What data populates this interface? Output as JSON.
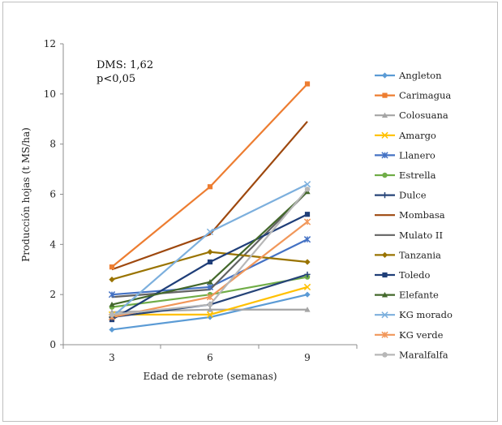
{
  "chart_data": {
    "type": "line",
    "title": "",
    "xlabel": "Edad de rebrote (semanas)",
    "ylabel": "Producción hojas (t MS/ha)",
    "x": [
      3,
      6,
      9
    ],
    "x_tick_labels": [
      "3",
      "6",
      "9"
    ],
    "ylim": [
      0,
      12
    ],
    "y_ticks": [
      0,
      2,
      4,
      6,
      8,
      10,
      12
    ],
    "y_tick_labels": [
      "0",
      "2",
      "4",
      "6",
      "8",
      "10",
      "12"
    ],
    "grid": false,
    "legend_position": "right",
    "annotations": [
      "DMS: 1,62",
      "p<0,05"
    ],
    "series": [
      {
        "name": "Angleton",
        "color": "#5b9bd5",
        "marker": "diamond",
        "values": [
          0.6,
          1.1,
          2.0
        ]
      },
      {
        "name": "Carimagua",
        "color": "#ed7d31",
        "marker": "square",
        "values": [
          3.1,
          6.3,
          10.4
        ]
      },
      {
        "name": "Colosuana",
        "color": "#a5a5a5",
        "marker": "triangle",
        "values": [
          1.3,
          1.4,
          1.4
        ]
      },
      {
        "name": "Amargo",
        "color": "#ffc000",
        "marker": "x",
        "values": [
          1.2,
          1.2,
          2.3
        ]
      },
      {
        "name": "Llanero",
        "color": "#4472c4",
        "marker": "star",
        "values": [
          2.0,
          2.3,
          4.2
        ]
      },
      {
        "name": "Estrella",
        "color": "#70ad47",
        "marker": "circle",
        "values": [
          1.5,
          2.0,
          2.7
        ]
      },
      {
        "name": "Dulce",
        "color": "#264478",
        "marker": "plus",
        "values": [
          1.1,
          1.6,
          2.8
        ]
      },
      {
        "name": "Mombasa",
        "color": "#9e480e",
        "marker": "none",
        "values": [
          3.0,
          4.4,
          8.9
        ]
      },
      {
        "name": "Mulato II",
        "color": "#636363",
        "marker": "none",
        "values": [
          1.9,
          2.2,
          6.1
        ]
      },
      {
        "name": "Tanzania",
        "color": "#997300",
        "marker": "diamond",
        "values": [
          2.6,
          3.7,
          3.3
        ]
      },
      {
        "name": "Toledo",
        "color": "#1f3e78",
        "marker": "square",
        "values": [
          1.0,
          3.3,
          5.2
        ]
      },
      {
        "name": "Elefante",
        "color": "#43682b",
        "marker": "triangle",
        "values": [
          1.6,
          2.5,
          6.1
        ]
      },
      {
        "name": "KG morado",
        "color": "#7cafdd",
        "marker": "x",
        "values": [
          1.1,
          4.5,
          6.4
        ]
      },
      {
        "name": "KG verde",
        "color": "#f1975a",
        "marker": "star",
        "values": [
          1.1,
          1.9,
          4.9
        ]
      },
      {
        "name": "Maralfalfa",
        "color": "#b7b7b7",
        "marker": "circle",
        "values": [
          1.2,
          1.6,
          6.2
        ]
      }
    ]
  }
}
